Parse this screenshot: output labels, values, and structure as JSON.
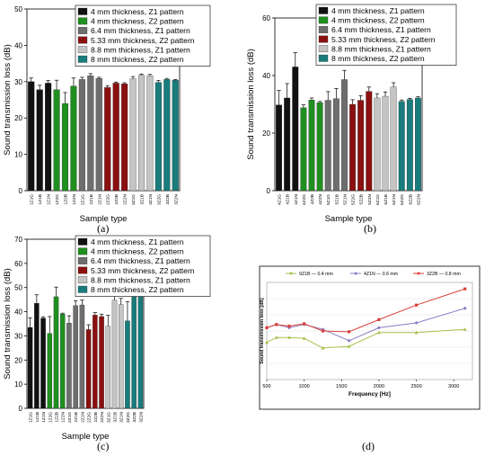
{
  "legend_entries": [
    {
      "label": "4 mm thickness, Z1 pattern",
      "color": "#111111"
    },
    {
      "label": "4 mm thickness, Z2 pattern",
      "color": "#1f8f1f"
    },
    {
      "label": "6.4 mm thickness, Z1 pattern",
      "color": "#6e6e6e"
    },
    {
      "label": "5.33 mm thickness, Z2 pattern",
      "color": "#8b1010"
    },
    {
      "label": "8.8 mm thickness, Z1 pattern",
      "color": "#c4c4c4"
    },
    {
      "label": "8 mm thickness, Z2 pattern",
      "color": "#1a7c7c"
    }
  ],
  "panel_labels": [
    "(a)",
    "(b)",
    "(c)",
    "(d)"
  ],
  "chart_data": [
    {
      "type": "bar",
      "panel": "(a)",
      "ylabel": "Sound transmission loss (dB)",
      "xlabel": "Sample type",
      "ylim": [
        0,
        50
      ],
      "yticks": [
        0,
        10,
        20,
        30,
        40,
        50
      ],
      "categories": [
        "1Z1G",
        "1Z1B",
        "1Z1N",
        "1Z2G",
        "1Z2B",
        "1Z2N",
        "2Z1G",
        "2Z1B",
        "2Z1N",
        "2Z2G",
        "2Z2B",
        "2Z2N",
        "3Z1G",
        "3Z1B",
        "3Z1N",
        "3Z2G",
        "3Z2B",
        "3Z2N"
      ],
      "groups": [
        0,
        0,
        0,
        1,
        1,
        1,
        2,
        2,
        2,
        3,
        3,
        3,
        4,
        4,
        4,
        5,
        5,
        5
      ],
      "values": [
        30,
        27.8,
        29.6,
        27.8,
        24,
        28.8,
        30.6,
        31.6,
        30.9,
        28.4,
        29.6,
        29.4,
        30.8,
        31.8,
        31.6,
        29.8,
        30.6,
        30.4
      ],
      "errors": [
        1.0,
        1.2,
        0.7,
        2.6,
        3.0,
        2.2,
        0.6,
        0.6,
        0.3,
        0.5,
        0.3,
        0.3,
        0.6,
        0.3,
        0.4,
        0.5,
        0.3,
        0.2
      ]
    },
    {
      "type": "bar",
      "panel": "(b)",
      "ylabel": "Sound transmission loss (dB)",
      "xlabel": "Sample type",
      "ylim": [
        0,
        60
      ],
      "yticks": [
        0,
        20,
        40,
        60
      ],
      "categories": [
        "4Z1G",
        "4Z1B",
        "4Z1N",
        "4Z2G",
        "4Z2B",
        "4Z2N",
        "5Z1G",
        "5Z1B",
        "5Z1N",
        "5Z2G",
        "5Z2B",
        "5Z2N",
        "6Z1G",
        "6Z1B",
        "6Z1N",
        "6Z2G",
        "6Z2B",
        "6Z2N"
      ],
      "groups": [
        0,
        0,
        0,
        1,
        1,
        1,
        2,
        2,
        2,
        3,
        3,
        3,
        4,
        4,
        4,
        5,
        5,
        5
      ],
      "values": [
        29.8,
        32.2,
        43,
        28.8,
        31.5,
        30.6,
        31.4,
        32,
        38.6,
        30,
        31.4,
        34.5,
        32.2,
        32.8,
        36,
        31,
        31.7,
        32.2
      ],
      "errors": [
        5.0,
        5.0,
        5.0,
        1.0,
        0.7,
        0.4,
        3.0,
        3.5,
        3.2,
        1.6,
        1.6,
        1.5,
        1.5,
        1.5,
        1.5,
        0.5,
        0.4,
        0.4
      ]
    },
    {
      "type": "bar",
      "panel": "(c)",
      "ylabel": "Sound transmission loss (dB)",
      "xlabel": "Sample type",
      "ylim": [
        0,
        70
      ],
      "yticks": [
        0,
        10,
        20,
        30,
        40,
        50,
        60,
        70
      ],
      "categories": [
        "1Z1G",
        "1Z1B",
        "1Z1N",
        "1Z2G",
        "1Z2B",
        "1Z2N",
        "2Z1G",
        "2Z1B",
        "2Z1N",
        "2Z2G",
        "2Z2B",
        "2Z2N",
        "3Z1G",
        "3Z1B",
        "3Z1N",
        "3Z2G",
        "3Z2B",
        "3Z2N"
      ],
      "groups": [
        0,
        0,
        0,
        1,
        1,
        1,
        2,
        2,
        2,
        3,
        3,
        3,
        4,
        4,
        4,
        5,
        5,
        5
      ],
      "values": [
        33.5,
        43.5,
        37.3,
        31,
        46.2,
        39,
        35.3,
        42.5,
        42.8,
        32.6,
        38.6,
        38,
        34,
        44.8,
        43,
        36.2,
        55.8,
        47.2
      ],
      "errors": [
        4.0,
        3.5,
        0.6,
        7.0,
        4.0,
        0.4,
        3.0,
        2.0,
        2.0,
        2.0,
        1.0,
        1.0,
        4.5,
        2.5,
        2.5,
        8.0,
        5.5,
        0.3
      ]
    },
    {
      "type": "line",
      "panel": "(d)",
      "ylabel": "Sound transmission loss [dB]",
      "xlabel": "Frequency [Hz]",
      "x": [
        500,
        630,
        800,
        1000,
        1250,
        1600,
        2000,
        2500,
        3150
      ],
      "xticks": [
        500,
        1000,
        1500,
        2000,
        2500,
        3000
      ],
      "series": [
        {
          "name": "9Z1B — 0.4 mm",
          "color": "#a5c24a",
          "marker": "triangle",
          "values": [
            23,
            26,
            26,
            25.5,
            19.5,
            20.5,
            29,
            29,
            31
          ]
        },
        {
          "name": "4Z1N — 0.6 mm",
          "color": "#8e7cc3",
          "marker": "diamond",
          "values": [
            32,
            34,
            32,
            34,
            31,
            24,
            32,
            35,
            44
          ]
        },
        {
          "name": "3Z2B — 0.8 mm",
          "color": "#d9403a",
          "marker": "square",
          "values": [
            32,
            34,
            33,
            34.5,
            30,
            29.5,
            37,
            46,
            56
          ]
        }
      ]
    }
  ]
}
